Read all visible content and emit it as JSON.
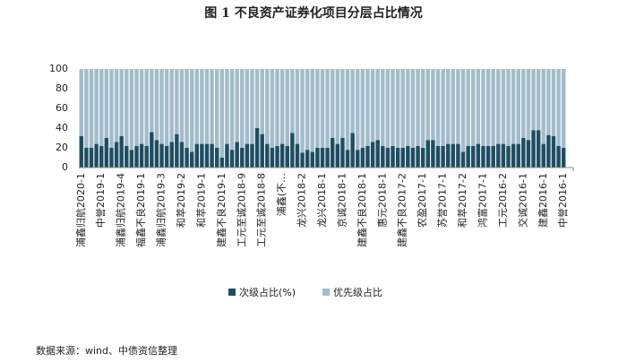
{
  "chart_data": {
    "type": "stacked_bar",
    "title": "图 1  不良资产证券化项目分层占比情况",
    "source": "数据来源：wind、中债资信整理",
    "categories": [
      "浦鑫归航2020-1",
      null,
      null,
      null,
      "中誉2019-1",
      null,
      null,
      null,
      "浦鑫归航2019-4",
      null,
      null,
      null,
      "福鑫不良2019-1",
      null,
      null,
      null,
      "浦鑫归航2019-3",
      null,
      null,
      null,
      "和萃2019-2",
      null,
      null,
      null,
      "和萃2019-1",
      null,
      null,
      null,
      "建鑫不良2019-1",
      null,
      null,
      null,
      "工元至诚2018-9",
      null,
      null,
      null,
      "工元至诚2018-8",
      null,
      null,
      null,
      "浦鑫(不…",
      null,
      null,
      null,
      "龙兴2018-2",
      null,
      null,
      null,
      "龙兴2018-1",
      null,
      null,
      null,
      "京诚2018-1",
      null,
      null,
      null,
      "建鑫不良2018-1",
      null,
      null,
      null,
      "惠元2018-1",
      null,
      null,
      null,
      "建鑫不良2017-2",
      null,
      null,
      null,
      "农盈2017-1",
      null,
      null,
      null,
      "苏誉2017-1",
      null,
      null,
      null,
      "和萃2017-2",
      null,
      null,
      null,
      "鸿富2017-1",
      null,
      null,
      null,
      "工元2016-2",
      null,
      null,
      null,
      "交诚2016-1",
      null,
      null,
      null,
      "建鑫2016-1",
      null,
      null,
      null,
      "中誉2016-1"
    ],
    "series": [
      {
        "name": "次级占比(%)",
        "color": "#1f4e63",
        "values": [
          32,
          20,
          20,
          24,
          22,
          30,
          20,
          26,
          32,
          22,
          18,
          22,
          24,
          22,
          36,
          28,
          24,
          22,
          26,
          34,
          26,
          20,
          16,
          24,
          24,
          24,
          24,
          20,
          10,
          24,
          18,
          26,
          20,
          24,
          24,
          40,
          34,
          24,
          20,
          22,
          24,
          22,
          35,
          24,
          15,
          18,
          16,
          20,
          20,
          20,
          30,
          24,
          30,
          18,
          35,
          18,
          20,
          22,
          26,
          28,
          22,
          20,
          22,
          20,
          20,
          22,
          20,
          22,
          20,
          28,
          28,
          22,
          22,
          24,
          24,
          24,
          16,
          22,
          22,
          24,
          22,
          22,
          22,
          24,
          24,
          22,
          24,
          24,
          30,
          28,
          38,
          38,
          24,
          33,
          32,
          22,
          20
        ]
      },
      {
        "name": "优先级占比",
        "color": "#a3bccb",
        "values": [
          68,
          80,
          80,
          76,
          78,
          70,
          80,
          74,
          68,
          78,
          82,
          78,
          76,
          78,
          64,
          72,
          76,
          78,
          74,
          66,
          74,
          80,
          84,
          76,
          76,
          76,
          76,
          80,
          90,
          76,
          82,
          74,
          80,
          76,
          76,
          60,
          66,
          76,
          80,
          78,
          76,
          78,
          65,
          76,
          85,
          82,
          84,
          80,
          80,
          80,
          70,
          76,
          70,
          82,
          65,
          82,
          80,
          78,
          74,
          72,
          78,
          80,
          78,
          80,
          80,
          78,
          80,
          78,
          80,
          72,
          72,
          78,
          78,
          76,
          76,
          76,
          84,
          78,
          78,
          76,
          78,
          78,
          78,
          76,
          76,
          78,
          76,
          76,
          70,
          72,
          62,
          62,
          76,
          67,
          68,
          78,
          80
        ]
      }
    ],
    "ylim": [
      0,
      100
    ],
    "yticks": [
      0,
      20,
      40,
      60,
      80,
      100
    ],
    "grid": false,
    "legend": "bottom"
  }
}
